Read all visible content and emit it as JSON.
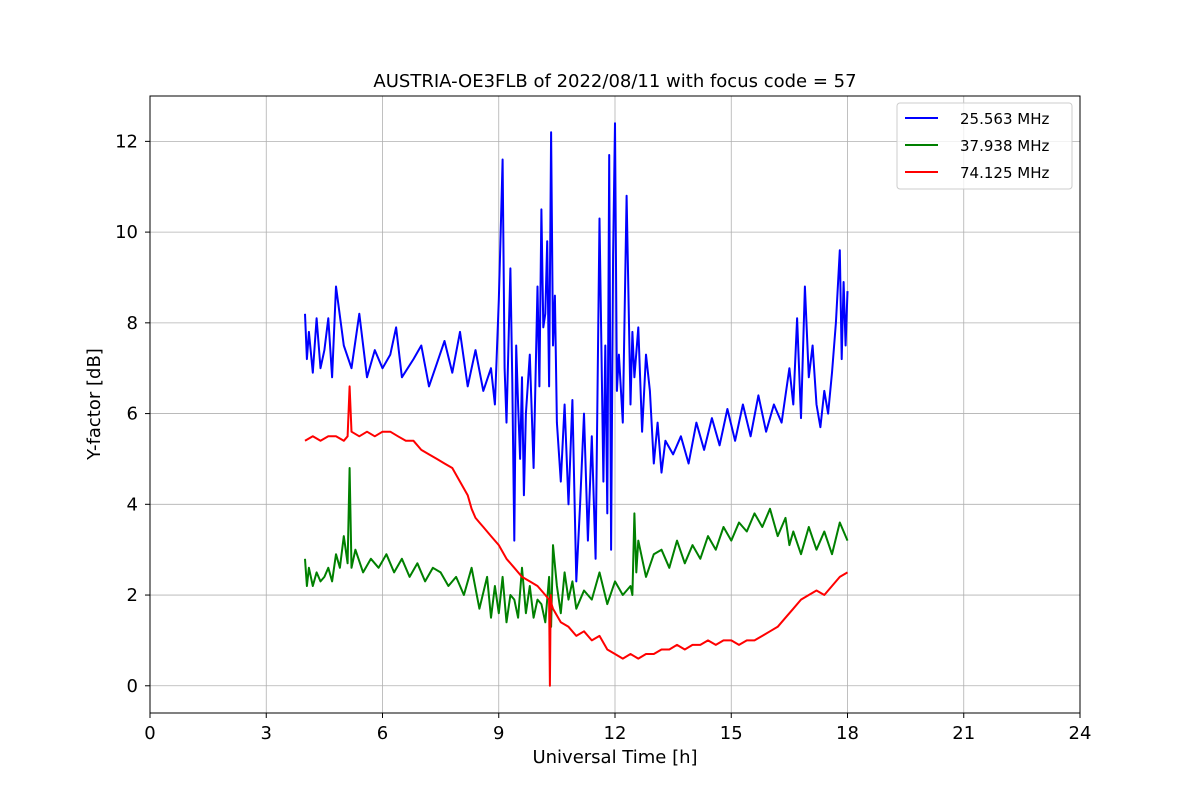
{
  "chart_data": {
    "type": "line",
    "title": "AUSTRIA-OE3FLB of 2022/08/11 with focus code = 57",
    "xlabel": "Universal Time [h]",
    "ylabel": "Y-factor [dB]",
    "xlim": [
      0,
      24
    ],
    "ylim": [
      -0.6,
      13
    ],
    "xticks": [
      0,
      3,
      6,
      9,
      12,
      15,
      18,
      21,
      24
    ],
    "xtick_labels": [
      "0",
      "3",
      "6",
      "9",
      "12",
      "15",
      "18",
      "21",
      "24"
    ],
    "yticks": [
      0,
      2,
      4,
      6,
      8,
      10,
      12
    ],
    "ytick_labels": [
      "0",
      "2",
      "4",
      "6",
      "8",
      "10",
      "12"
    ],
    "grid": true,
    "legend_position": "top-right",
    "series": [
      {
        "name": "25.563 MHz",
        "color": "#0000ff",
        "x": [
          4.0,
          4.05,
          4.1,
          4.2,
          4.3,
          4.4,
          4.5,
          4.6,
          4.7,
          4.8,
          5.0,
          5.2,
          5.4,
          5.6,
          5.8,
          6.0,
          6.2,
          6.35,
          6.5,
          6.8,
          7.0,
          7.2,
          7.4,
          7.6,
          7.8,
          8.0,
          8.2,
          8.4,
          8.6,
          8.8,
          8.9,
          9.0,
          9.05,
          9.1,
          9.15,
          9.2,
          9.3,
          9.35,
          9.4,
          9.45,
          9.5,
          9.55,
          9.6,
          9.65,
          9.7,
          9.8,
          9.9,
          10.0,
          10.05,
          10.1,
          10.15,
          10.2,
          10.25,
          10.3,
          10.35,
          10.4,
          10.45,
          10.5,
          10.6,
          10.7,
          10.8,
          10.9,
          11.0,
          11.1,
          11.2,
          11.3,
          11.4,
          11.5,
          11.6,
          11.7,
          11.75,
          11.8,
          11.85,
          11.9,
          11.95,
          12.0,
          12.05,
          12.1,
          12.2,
          12.3,
          12.4,
          12.45,
          12.5,
          12.6,
          12.7,
          12.8,
          12.9,
          13.0,
          13.1,
          13.2,
          13.3,
          13.5,
          13.7,
          13.9,
          14.1,
          14.3,
          14.5,
          14.7,
          14.9,
          15.1,
          15.3,
          15.5,
          15.7,
          15.9,
          16.1,
          16.3,
          16.5,
          16.6,
          16.7,
          16.8,
          16.9,
          17.0,
          17.1,
          17.2,
          17.3,
          17.4,
          17.5,
          17.6,
          17.7,
          17.8,
          17.85,
          17.9,
          17.95,
          18.0
        ],
        "y": [
          8.2,
          7.2,
          7.8,
          6.9,
          8.1,
          7.0,
          7.4,
          8.1,
          6.8,
          8.8,
          7.5,
          7.0,
          8.2,
          6.8,
          7.4,
          7.0,
          7.3,
          7.9,
          6.8,
          7.2,
          7.5,
          6.6,
          7.1,
          7.6,
          6.9,
          7.8,
          6.6,
          7.4,
          6.5,
          7.0,
          6.2,
          8.5,
          10.0,
          11.6,
          7.0,
          5.8,
          9.2,
          6.7,
          3.2,
          7.5,
          6.2,
          5.0,
          6.8,
          4.2,
          6.0,
          7.3,
          4.8,
          8.8,
          6.6,
          10.5,
          7.9,
          8.2,
          9.8,
          6.6,
          12.2,
          7.5,
          8.6,
          5.8,
          4.5,
          6.2,
          4.0,
          6.3,
          2.3,
          4.0,
          6.0,
          3.2,
          5.5,
          2.8,
          10.3,
          4.5,
          7.5,
          3.8,
          11.7,
          3.0,
          9.5,
          12.4,
          6.5,
          7.3,
          5.8,
          10.8,
          6.2,
          7.8,
          6.8,
          7.9,
          5.6,
          7.3,
          6.5,
          4.9,
          5.8,
          4.7,
          5.4,
          5.1,
          5.5,
          4.9,
          5.8,
          5.2,
          5.9,
          5.3,
          6.1,
          5.4,
          6.2,
          5.5,
          6.4,
          5.6,
          6.2,
          5.8,
          7.0,
          6.2,
          8.1,
          5.9,
          8.8,
          6.8,
          7.5,
          6.2,
          5.7,
          6.5,
          6.0,
          6.9,
          8.0,
          9.6,
          7.2,
          8.9,
          7.5,
          8.7
        ]
      },
      {
        "name": "37.938 MHz",
        "color": "#008000",
        "x": [
          4.0,
          4.05,
          4.1,
          4.2,
          4.3,
          4.4,
          4.5,
          4.6,
          4.7,
          4.8,
          4.9,
          5.0,
          5.1,
          5.15,
          5.2,
          5.3,
          5.5,
          5.7,
          5.9,
          6.1,
          6.3,
          6.5,
          6.7,
          6.9,
          7.1,
          7.3,
          7.5,
          7.7,
          7.9,
          8.1,
          8.3,
          8.5,
          8.7,
          8.8,
          8.9,
          9.0,
          9.1,
          9.2,
          9.3,
          9.4,
          9.5,
          9.6,
          9.7,
          9.8,
          9.9,
          10.0,
          10.1,
          10.2,
          10.3,
          10.35,
          10.4,
          10.5,
          10.6,
          10.7,
          10.8,
          10.9,
          11.0,
          11.2,
          11.4,
          11.6,
          11.8,
          12.0,
          12.2,
          12.4,
          12.45,
          12.5,
          12.55,
          12.6,
          12.8,
          13.0,
          13.2,
          13.4,
          13.6,
          13.8,
          14.0,
          14.2,
          14.4,
          14.6,
          14.8,
          15.0,
          15.2,
          15.4,
          15.6,
          15.8,
          16.0,
          16.2,
          16.4,
          16.5,
          16.6,
          16.8,
          17.0,
          17.2,
          17.4,
          17.6,
          17.8,
          18.0
        ],
        "y": [
          2.8,
          2.2,
          2.6,
          2.2,
          2.5,
          2.3,
          2.4,
          2.6,
          2.3,
          2.9,
          2.6,
          3.3,
          2.7,
          4.8,
          2.6,
          3.0,
          2.5,
          2.8,
          2.6,
          2.9,
          2.5,
          2.8,
          2.4,
          2.7,
          2.3,
          2.6,
          2.5,
          2.2,
          2.4,
          2.0,
          2.6,
          1.7,
          2.4,
          1.5,
          2.2,
          1.6,
          2.4,
          1.4,
          2.0,
          1.9,
          1.5,
          2.6,
          1.6,
          2.2,
          1.5,
          1.9,
          1.8,
          1.4,
          2.4,
          1.3,
          3.1,
          2.2,
          1.6,
          2.5,
          1.9,
          2.3,
          1.7,
          2.1,
          1.9,
          2.5,
          1.8,
          2.3,
          2.0,
          2.2,
          2.0,
          3.8,
          2.5,
          3.2,
          2.4,
          2.9,
          3.0,
          2.6,
          3.2,
          2.7,
          3.1,
          2.8,
          3.3,
          3.0,
          3.5,
          3.2,
          3.6,
          3.4,
          3.8,
          3.5,
          3.9,
          3.3,
          3.7,
          3.1,
          3.4,
          2.9,
          3.5,
          3.0,
          3.4,
          2.9,
          3.6,
          3.2
        ]
      },
      {
        "name": "74.125 MHz",
        "color": "#ff0000",
        "x": [
          4.0,
          4.2,
          4.4,
          4.6,
          4.8,
          5.0,
          5.1,
          5.15,
          5.2,
          5.4,
          5.6,
          5.8,
          6.0,
          6.2,
          6.4,
          6.6,
          6.8,
          7.0,
          7.2,
          7.4,
          7.6,
          7.8,
          8.0,
          8.2,
          8.3,
          8.4,
          8.5,
          8.6,
          8.8,
          9.0,
          9.2,
          9.4,
          9.6,
          9.8,
          10.0,
          10.2,
          10.3,
          10.32,
          10.34,
          10.36,
          10.4,
          10.6,
          10.8,
          11.0,
          11.2,
          11.4,
          11.6,
          11.8,
          12.0,
          12.2,
          12.4,
          12.6,
          12.8,
          13.0,
          13.2,
          13.4,
          13.6,
          13.8,
          14.0,
          14.2,
          14.4,
          14.6,
          14.8,
          15.0,
          15.2,
          15.4,
          15.6,
          15.8,
          16.0,
          16.2,
          16.4,
          16.6,
          16.8,
          17.0,
          17.2,
          17.4,
          17.6,
          17.8,
          18.0
        ],
        "y": [
          5.4,
          5.5,
          5.4,
          5.5,
          5.5,
          5.4,
          5.5,
          6.6,
          5.6,
          5.5,
          5.6,
          5.5,
          5.6,
          5.6,
          5.5,
          5.4,
          5.4,
          5.2,
          5.1,
          5.0,
          4.9,
          4.8,
          4.5,
          4.2,
          3.9,
          3.7,
          3.6,
          3.5,
          3.3,
          3.1,
          2.8,
          2.6,
          2.4,
          2.3,
          2.2,
          2.0,
          1.9,
          0.0,
          2.0,
          1.8,
          1.7,
          1.4,
          1.3,
          1.1,
          1.2,
          1.0,
          1.1,
          0.8,
          0.7,
          0.6,
          0.7,
          0.6,
          0.7,
          0.7,
          0.8,
          0.8,
          0.9,
          0.8,
          0.9,
          0.9,
          1.0,
          0.9,
          1.0,
          1.0,
          0.9,
          1.0,
          1.0,
          1.1,
          1.2,
          1.3,
          1.5,
          1.7,
          1.9,
          2.0,
          2.1,
          2.0,
          2.2,
          2.4,
          2.5
        ]
      }
    ]
  }
}
